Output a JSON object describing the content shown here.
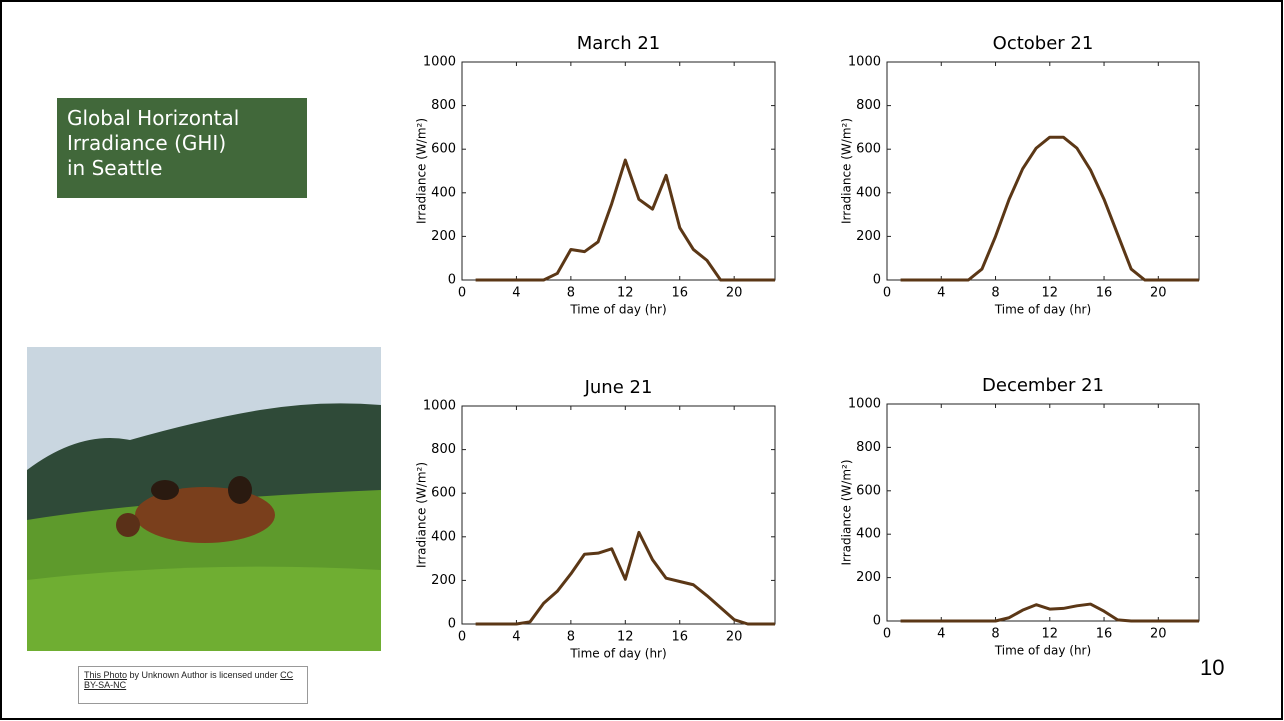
{
  "heading": [
    "Global Horizontal",
    "Irradiance (GHI)",
    "in Seattle"
  ],
  "photo_caption": [
    "This Photo",
    "by Unknown Author is licensed under",
    "CC BY-SA-NC"
  ],
  "page_number": "10",
  "chart_data": [
    {
      "type": "line",
      "title": "March 21",
      "xlabel": "Time of day (hr)",
      "ylabel": "Irradiance (W/m²)",
      "x": [
        1,
        2,
        3,
        4,
        5,
        6,
        7,
        8,
        9,
        10,
        11,
        12,
        13,
        14,
        15,
        16,
        17,
        18,
        19,
        20,
        21,
        22,
        23
      ],
      "series": [
        {
          "color": "#5b3716",
          "values": [
            0,
            0,
            0,
            0,
            0,
            0,
            30,
            140,
            130,
            175,
            350,
            550,
            370,
            325,
            480,
            240,
            140,
            90,
            0,
            0,
            0,
            0,
            0
          ]
        }
      ],
      "xlim": [
        0,
        23
      ],
      "ylim": [
        0,
        1000
      ],
      "xticks": [
        0,
        4,
        8,
        12,
        16,
        20
      ],
      "yticks": [
        0,
        200,
        400,
        600,
        800,
        1000
      ]
    },
    {
      "type": "line",
      "title": "October 21",
      "xlabel": "Time of day (hr)",
      "ylabel": "Irradiance (W/m²)",
      "x": [
        1,
        2,
        3,
        4,
        5,
        6,
        7,
        8,
        9,
        10,
        11,
        12,
        13,
        14,
        15,
        16,
        17,
        18,
        19,
        20,
        21,
        22,
        23
      ],
      "series": [
        {
          "color": "#5b3716",
          "values": [
            0,
            0,
            0,
            0,
            0,
            0,
            50,
            200,
            370,
            510,
            605,
            655,
            655,
            605,
            505,
            370,
            210,
            50,
            0,
            0,
            0,
            0,
            0
          ]
        }
      ],
      "xlim": [
        0,
        23
      ],
      "ylim": [
        0,
        1000
      ],
      "xticks": [
        0,
        4,
        8,
        12,
        16,
        20
      ],
      "yticks": [
        0,
        200,
        400,
        600,
        800,
        1000
      ]
    },
    {
      "type": "line",
      "title": "June 21",
      "xlabel": "Time of day (hr)",
      "ylabel": "Irradiance (W/m²)",
      "x": [
        1,
        2,
        3,
        4,
        5,
        6,
        7,
        8,
        9,
        10,
        11,
        12,
        13,
        14,
        15,
        16,
        17,
        18,
        19,
        20,
        21,
        22,
        23
      ],
      "series": [
        {
          "color": "#5b3716",
          "values": [
            0,
            0,
            0,
            0,
            10,
            95,
            150,
            230,
            320,
            325,
            345,
            205,
            420,
            295,
            210,
            195,
            180,
            130,
            75,
            20,
            0,
            0,
            0
          ]
        }
      ],
      "xlim": [
        0,
        23
      ],
      "ylim": [
        0,
        1000
      ],
      "xticks": [
        0,
        4,
        8,
        12,
        16,
        20
      ],
      "yticks": [
        0,
        200,
        400,
        600,
        800,
        1000
      ]
    },
    {
      "type": "line",
      "title": "December 21",
      "xlabel": "Time of day (hr)",
      "ylabel": "Irradiance (W/m²)",
      "x": [
        1,
        2,
        3,
        4,
        5,
        6,
        7,
        8,
        9,
        10,
        11,
        12,
        13,
        14,
        15,
        16,
        17,
        18,
        19,
        20,
        21,
        22,
        23
      ],
      "series": [
        {
          "color": "#5b3716",
          "values": [
            0,
            0,
            0,
            0,
            0,
            0,
            0,
            0,
            15,
            50,
            75,
            55,
            58,
            70,
            78,
            45,
            5,
            0,
            0,
            0,
            0,
            0,
            0
          ]
        }
      ],
      "xlim": [
        0,
        23
      ],
      "ylim": [
        0,
        1000
      ],
      "xticks": [
        0,
        4,
        8,
        12,
        16,
        20
      ],
      "yticks": [
        0,
        200,
        400,
        600,
        800,
        1000
      ]
    }
  ]
}
